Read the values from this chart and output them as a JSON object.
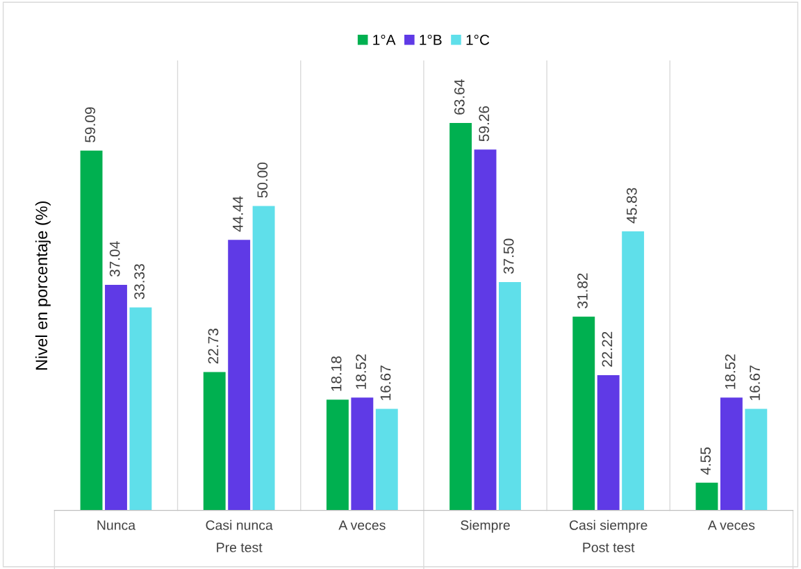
{
  "chart_data": {
    "type": "bar",
    "ylabel": "Nivel en porcentaje (%)",
    "categories": [
      "Nunca",
      "Casi nunca",
      "A veces",
      "Siempre",
      "Casi siempre",
      "A veces"
    ],
    "series": [
      {
        "name": "1°A",
        "color": "#00b050",
        "values": [
          59.09,
          22.73,
          18.18,
          63.64,
          31.82,
          4.55
        ],
        "value_labels": [
          "59.09",
          "22.73",
          "18.18",
          "63.64",
          "31.82",
          "4.55"
        ]
      },
      {
        "name": "1°B",
        "color": "#5f3ae6",
        "values": [
          37.04,
          44.44,
          18.52,
          59.26,
          22.22,
          18.52
        ],
        "value_labels": [
          "37.04",
          "44.44",
          "18.52",
          "59.26",
          "22.22",
          "18.52"
        ]
      },
      {
        "name": "1°C",
        "color": "#5fdfea",
        "values": [
          33.33,
          50.0,
          16.67,
          37.5,
          45.83,
          16.67
        ],
        "value_labels": [
          "33.33",
          "50.00",
          "16.67",
          "37.50",
          "45.83",
          "16.67"
        ]
      }
    ],
    "legend": "top",
    "grid": false,
    "annotations": [
      "Pre test",
      "Post test"
    ]
  }
}
